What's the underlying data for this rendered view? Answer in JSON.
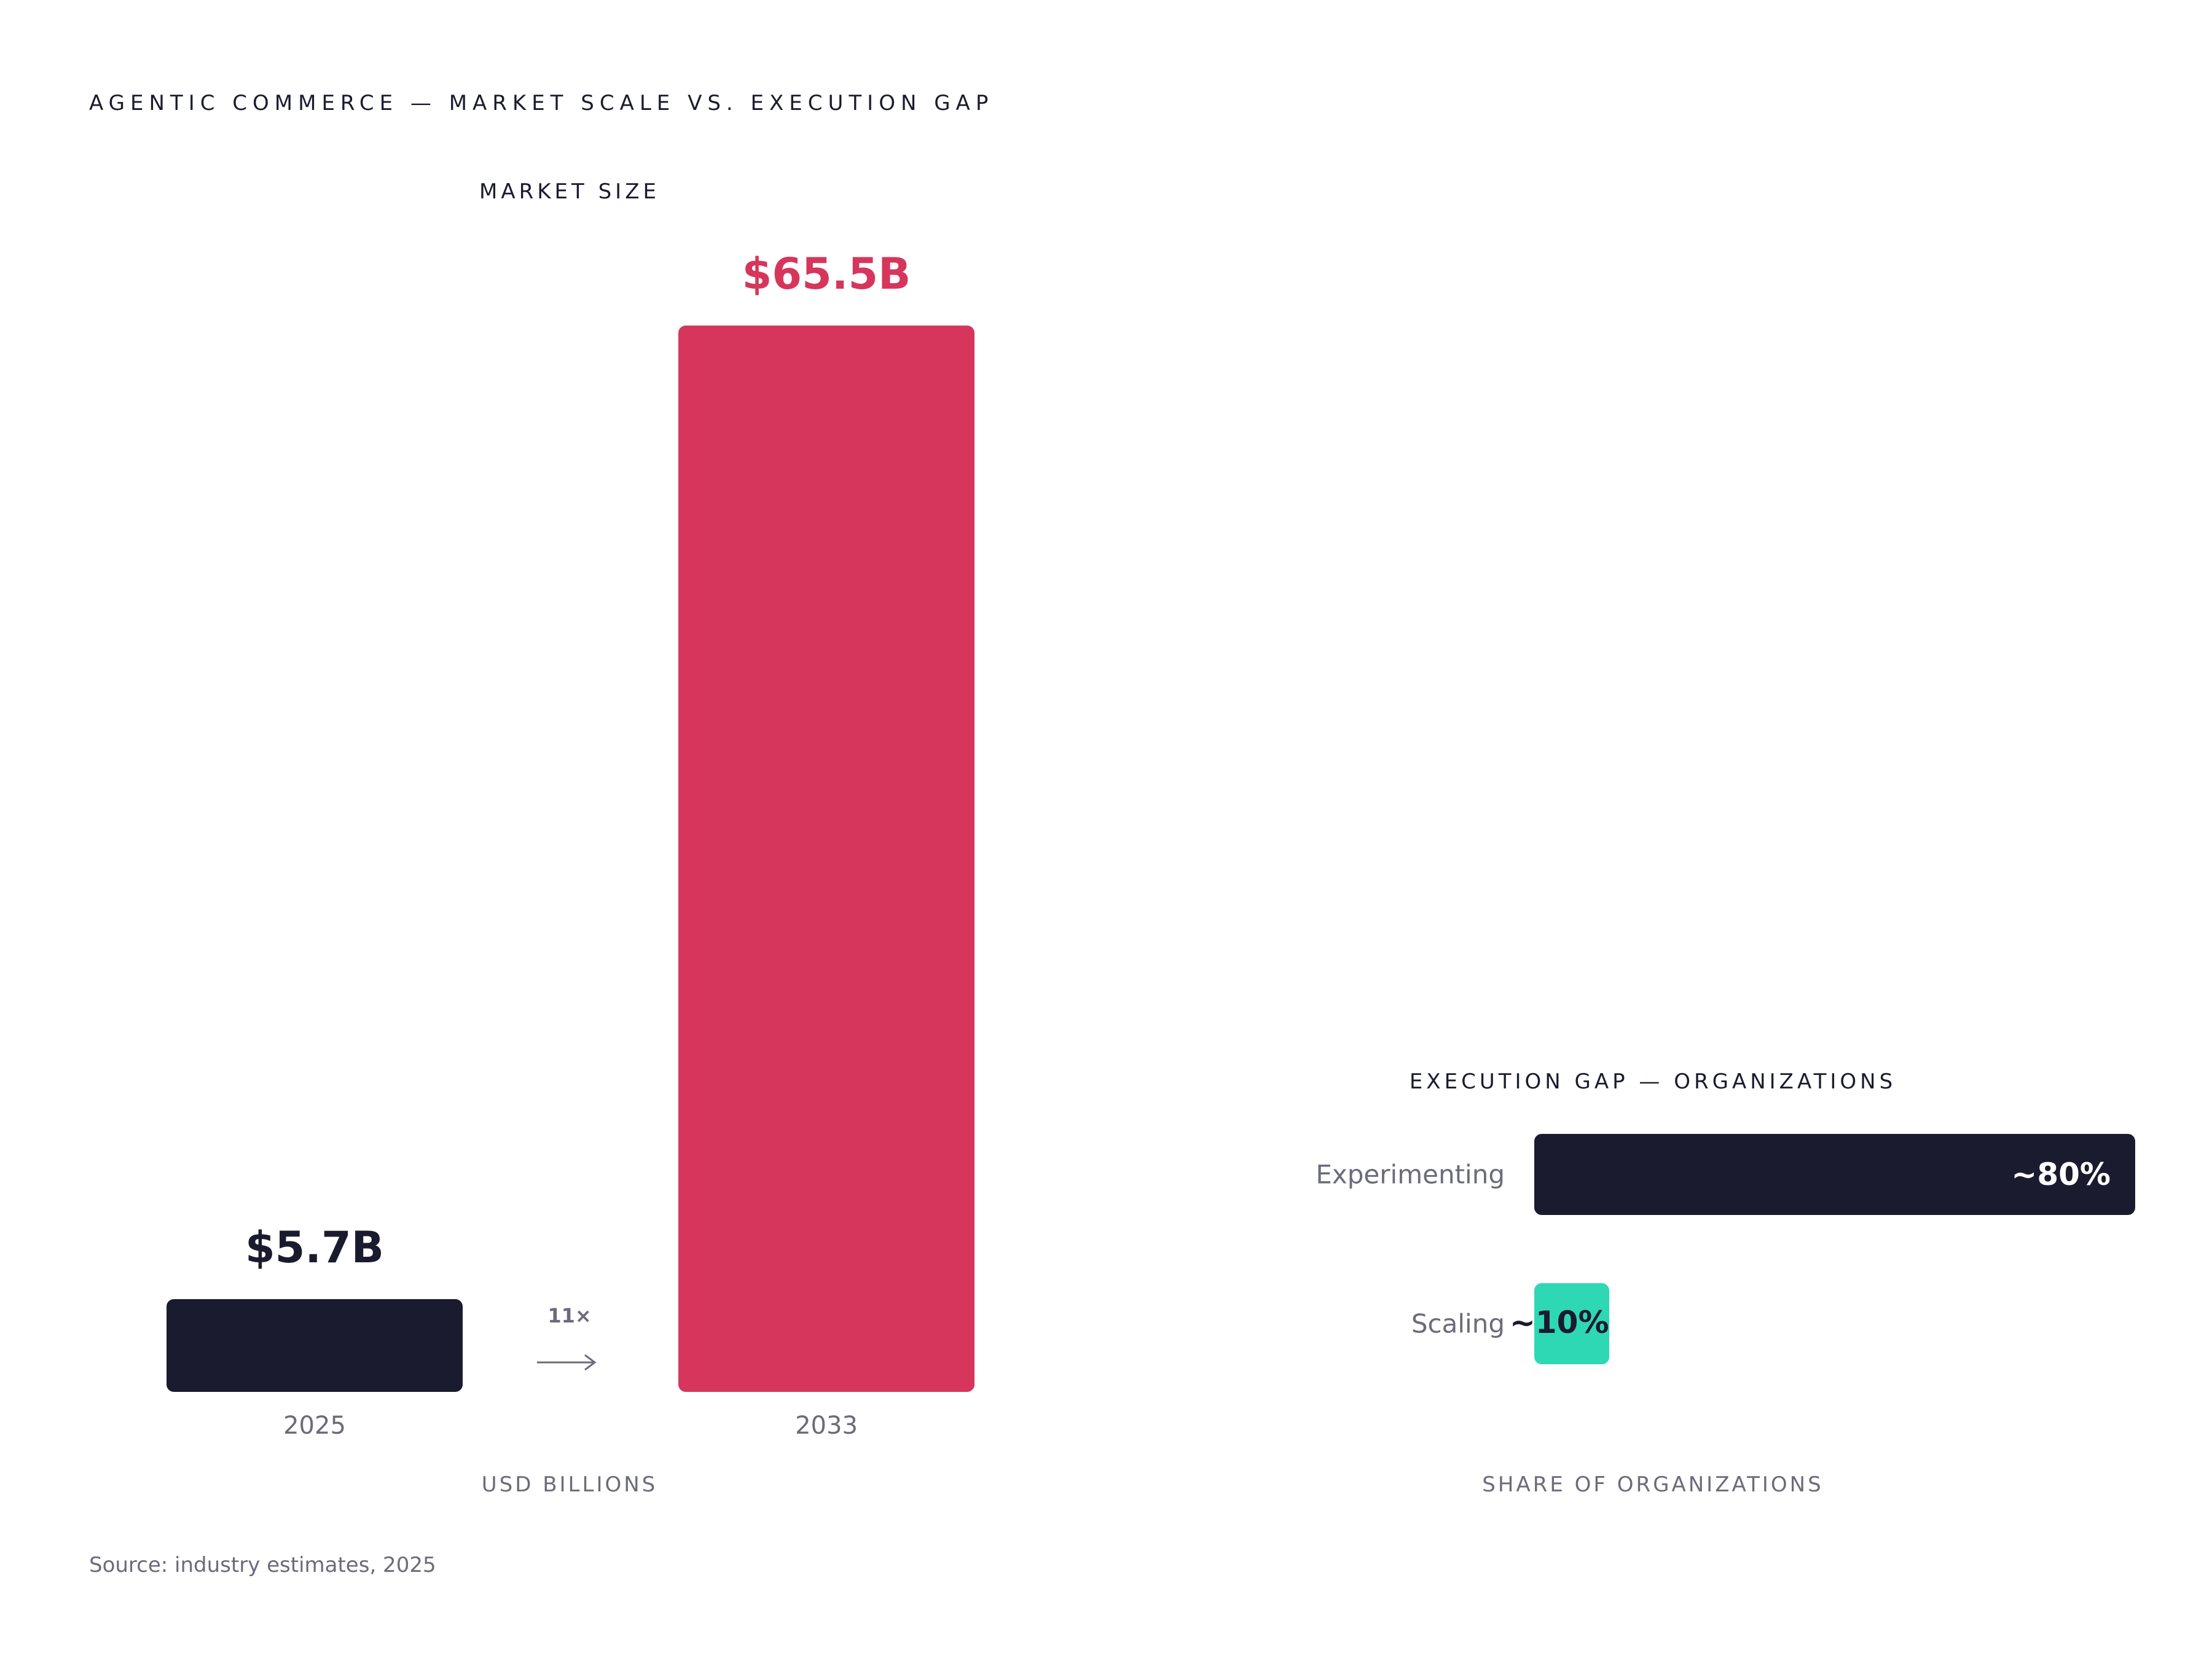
{
  "title": "AGENTIC COMMERCE — MARKET SCALE VS. EXECUTION GAP",
  "source": "Source: industry estimates, 2025",
  "colors": {
    "dark": "#1b1b2f",
    "accent": "#d6365b",
    "teal": "#2ed8b4",
    "muted": "#6b6b7b"
  },
  "chart_data": [
    {
      "type": "bar",
      "title": "MARKET SIZE",
      "xlabel": "USD BILLIONS",
      "categories": [
        "2025",
        "2033"
      ],
      "values": [
        5.7,
        65.5
      ],
      "data_labels": [
        "$5.7B",
        "$65.5B"
      ],
      "annotation": "11×",
      "ylim": [
        0,
        65.5
      ],
      "grid": false
    },
    {
      "type": "bar",
      "orientation": "horizontal",
      "title": "EXECUTION GAP — ORGANIZATIONS",
      "xlabel": "SHARE OF ORGANIZATIONS",
      "categories": [
        "Experimenting",
        "Scaling"
      ],
      "values": [
        80,
        10
      ],
      "data_labels": [
        "~80%",
        "~10%"
      ],
      "xlim": [
        0,
        80
      ],
      "grid": false
    }
  ]
}
